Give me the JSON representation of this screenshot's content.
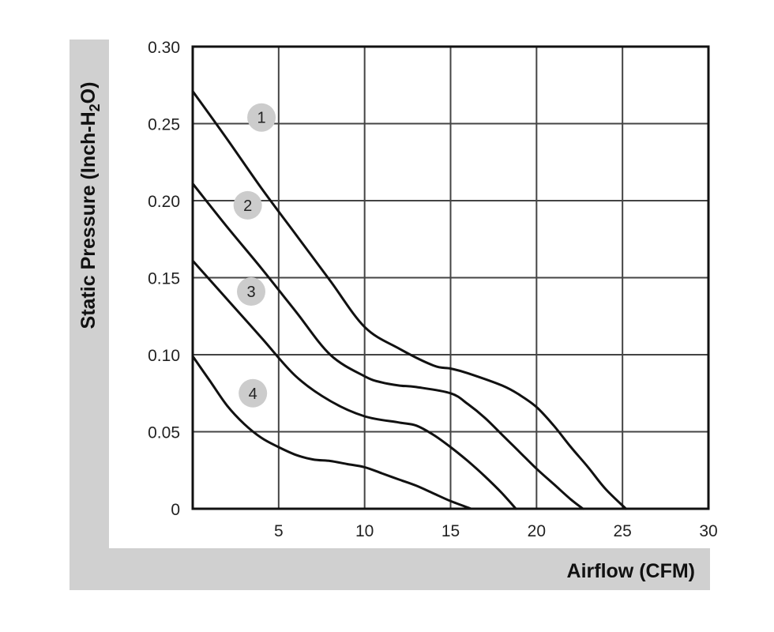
{
  "chart_data": {
    "type": "line",
    "xlabel": "Airflow (CFM)",
    "ylabel": {
      "prefix": "Static Pressure (Inch-H",
      "subscript": "2",
      "suffix": "O)"
    },
    "xlim": [
      0,
      30
    ],
    "ylim": [
      0,
      0.3
    ],
    "x_ticks": [
      "5",
      "10",
      "15",
      "20",
      "25",
      "30"
    ],
    "x_tick_values": [
      5,
      10,
      15,
      20,
      25,
      30
    ],
    "y_ticks": [
      "0",
      "0.05",
      "0.10",
      "0.15",
      "0.20",
      "0.25",
      "0.30"
    ],
    "y_tick_values": [
      0,
      0.05,
      0.1,
      0.15,
      0.2,
      0.25,
      0.3
    ],
    "grid": true,
    "line_color": "#111111",
    "grid_color": "#444444",
    "panel_color": "#d0d0d0",
    "series": [
      {
        "name": "1",
        "label_at": [
          4,
          0.254
        ],
        "points": [
          [
            0,
            0.271
          ],
          [
            2,
            0.24
          ],
          [
            4,
            0.208
          ],
          [
            6,
            0.178
          ],
          [
            8,
            0.148
          ],
          [
            10,
            0.118
          ],
          [
            12,
            0.104
          ],
          [
            14,
            0.093
          ],
          [
            15,
            0.091
          ],
          [
            16,
            0.088
          ],
          [
            18,
            0.08
          ],
          [
            19,
            0.074
          ],
          [
            20,
            0.066
          ],
          [
            21,
            0.054
          ],
          [
            22,
            0.04
          ],
          [
            23,
            0.027
          ],
          [
            24,
            0.013
          ],
          [
            25.2,
            0
          ]
        ]
      },
      {
        "name": "2",
        "label_at": [
          3.2,
          0.197
        ],
        "points": [
          [
            0,
            0.211
          ],
          [
            2,
            0.183
          ],
          [
            4,
            0.156
          ],
          [
            6,
            0.128
          ],
          [
            8,
            0.1
          ],
          [
            10,
            0.086
          ],
          [
            11,
            0.082
          ],
          [
            12,
            0.08
          ],
          [
            13,
            0.079
          ],
          [
            15,
            0.075
          ],
          [
            16,
            0.068
          ],
          [
            17,
            0.059
          ],
          [
            18,
            0.048
          ],
          [
            19,
            0.037
          ],
          [
            20,
            0.026
          ],
          [
            21,
            0.016
          ],
          [
            22,
            0.006
          ],
          [
            22.7,
            0
          ]
        ]
      },
      {
        "name": "3",
        "label_at": [
          3.4,
          0.141
        ],
        "points": [
          [
            0,
            0.161
          ],
          [
            2,
            0.136
          ],
          [
            4,
            0.111
          ],
          [
            6,
            0.086
          ],
          [
            8,
            0.07
          ],
          [
            10,
            0.06
          ],
          [
            12,
            0.056
          ],
          [
            13,
            0.054
          ],
          [
            14,
            0.048
          ],
          [
            15,
            0.04
          ],
          [
            16,
            0.031
          ],
          [
            17,
            0.021
          ],
          [
            18,
            0.01
          ],
          [
            18.8,
            0
          ]
        ]
      },
      {
        "name": "4",
        "label_at": [
          3.5,
          0.075
        ],
        "points": [
          [
            0,
            0.099
          ],
          [
            1,
            0.083
          ],
          [
            2,
            0.067
          ],
          [
            3,
            0.055
          ],
          [
            4,
            0.046
          ],
          [
            5,
            0.04
          ],
          [
            6,
            0.035
          ],
          [
            7,
            0.032
          ],
          [
            8,
            0.031
          ],
          [
            9,
            0.029
          ],
          [
            10,
            0.027
          ],
          [
            11,
            0.023
          ],
          [
            12,
            0.019
          ],
          [
            13,
            0.015
          ],
          [
            14,
            0.01
          ],
          [
            15,
            0.005
          ],
          [
            16.2,
            0
          ]
        ]
      }
    ]
  }
}
